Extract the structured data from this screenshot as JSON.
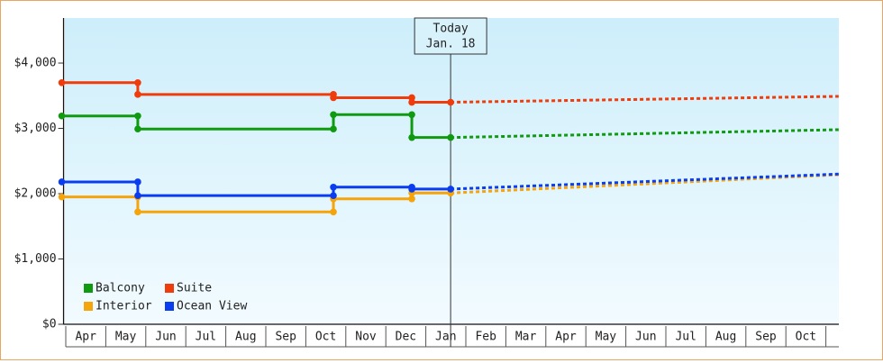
{
  "chart_data": {
    "type": "line",
    "series": [
      {
        "name": "Balcony",
        "color": "#109a10",
        "x": [
          -0.1,
          1.8,
          1.8,
          6.69,
          6.69,
          8.65,
          8.65,
          9.62,
          19.32
        ],
        "values": [
          3190,
          3190,
          2990,
          2990,
          3210,
          3210,
          2860,
          2860,
          2980
        ]
      },
      {
        "name": "Suite",
        "color": "#f03c0a",
        "x": [
          -0.1,
          1.8,
          1.8,
          6.69,
          6.69,
          8.65,
          8.65,
          9.62,
          19.32
        ],
        "values": [
          3700,
          3700,
          3520,
          3520,
          3470,
          3470,
          3400,
          3400,
          3490
        ]
      },
      {
        "name": "Interior",
        "color": "#f5a40a",
        "x": [
          -0.1,
          1.8,
          1.8,
          6.69,
          6.69,
          8.65,
          8.65,
          9.62,
          19.32
        ],
        "values": [
          1950,
          1950,
          1720,
          1720,
          1920,
          1920,
          2010,
          2010,
          2290
        ]
      },
      {
        "name": "Ocean View",
        "color": "#0a3cf0",
        "x": [
          -0.1,
          1.8,
          1.8,
          6.69,
          6.69,
          8.65,
          8.65,
          9.62,
          19.32
        ],
        "values": [
          2180,
          2180,
          1970,
          1970,
          2100,
          2100,
          2070,
          2070,
          2300
        ]
      }
    ],
    "categories": [
      "Apr",
      "May",
      "Jun",
      "Jul",
      "Aug",
      "Sep",
      "Oct",
      "Nov",
      "Dec",
      "Jan",
      "Feb",
      "Mar",
      "Apr",
      "May",
      "Jun",
      "Jul",
      "Aug",
      "Sep",
      "Oct"
    ],
    "xlim": [
      -0.1,
      19.32
    ],
    "ylim": [
      0,
      4690
    ],
    "yticks": [
      {
        "value": 0,
        "label": "$0"
      },
      {
        "value": 1000,
        "label": "$1,000"
      },
      {
        "value": 2000,
        "label": "$2,000"
      },
      {
        "value": 3000,
        "label": "$3,000"
      },
      {
        "value": 4000,
        "label": "$4,000"
      }
    ],
    "annotation": {
      "text": [
        "Today",
        "Jan. 18"
      ],
      "x": 9.62
    },
    "legend": "bottom-left"
  }
}
